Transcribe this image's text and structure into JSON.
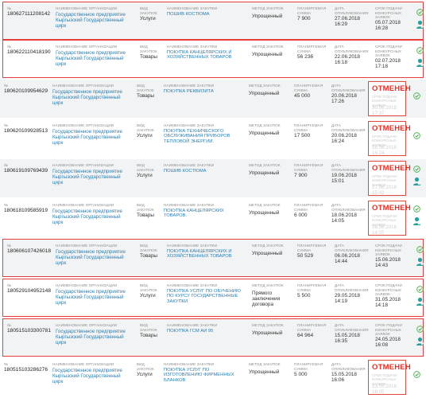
{
  "labels": {
    "number": "№",
    "organization": "НАИМЕНОВАНИЕ ОРГАНИЗАЦИИ",
    "type": "ВИД ЗАКУПОК",
    "purchase_name": "НАИМЕНОВАНИЕ ЗАКУПКИ",
    "method": "МЕТОД ЗАКУПОК",
    "sum": "ПЛАНИРУЕМАЯ СУММА",
    "published": "ДАТА ОПУБЛИКОВАНИЯ",
    "deadline": "СРОК ПОДАЧИ КОНКУРСНЫХ ЗАЯВОК",
    "cancelled": "ОТМЕНЕН"
  },
  "colors": {
    "link": "#2a7fb0",
    "cancel": "#e0322a",
    "highlight_border": "#e53c3c",
    "gray_row": "#f2f3f4",
    "check": "#4caf50",
    "user_icon": "#2a9d9d"
  },
  "rows": [
    {
      "number": "180627111208142",
      "org": "Государственное предприятие Кыргызский Государственный цирк",
      "type": "Услуги",
      "name": "ПОШИВ КОСТЮМА",
      "method": "Упрощенный",
      "sum": "7 900",
      "published": "27.06.2018 16:29",
      "deadline": "05.07.2018 16:28",
      "cancelled": false,
      "gray": true,
      "outlined": true,
      "icons": [
        "check-icon",
        "user-icon"
      ]
    },
    {
      "number": "180622110418190",
      "org": "Государственное предприятие Кыргызский Государственный цирк",
      "type": "Товары",
      "name": "ПОКУПКА КАНЦЕЛЯРСКИХ И ХОЗЯЙСТВЕННЫХ ТОВАРОВ",
      "method": "Упрощенный",
      "sum": "56 236",
      "published": "22.06.2018 16:18",
      "deadline": "02.07.2018 17:18",
      "cancelled": false,
      "gray": false,
      "outlined": true,
      "icons": [
        "check-icon",
        "user-icon"
      ]
    },
    {
      "number": "180620109954629",
      "org": "Государственное предприятие Кыргызский Государственный цирк",
      "type": "Товары",
      "name": "ПОКУПКА РЕКВИЗИТА",
      "method": "Упрощенный",
      "sum": "45 000",
      "published": "20.06.2018 17:26",
      "deadline": "30.06.2018 17:37",
      "cancelled": true,
      "gray": true,
      "outlined": false,
      "icons": [
        "check-icon"
      ]
    },
    {
      "number": "180620109928513",
      "org": "Государственное предприятие Кыргызский Государственный цирк",
      "type": "Услуги",
      "name": "ПОКУПКА ТЕХНИЧЕСКОГО ОБСЛУЖИВАНИЯ ПРИБОРОВ ТЕПЛОВОЙ ЭНЕРГИИ.",
      "method": "Упрощенный",
      "sum": "17 500",
      "published": "20.06.2018 16:24",
      "deadline": "28.06.2018 16:24",
      "cancelled": true,
      "gray": false,
      "outlined": false,
      "icons": [
        "check-icon"
      ]
    },
    {
      "number": "180619109769439",
      "org": "Государственное предприятие Кыргызский Государственный цирк",
      "type": "Услуги",
      "name": "ПОШИВ КОСТЮМА",
      "method": "Упрощенный",
      "sum": "7 900",
      "published": "19.06.2018 15:01",
      "deadline": "27.06.2018 15:42",
      "cancelled": true,
      "gray": true,
      "outlined": false,
      "icons": [
        "check-icon",
        "user-icon"
      ]
    },
    {
      "number": "180618109585919",
      "org": "Государственное предприятие Кыргызский Государственный цирк",
      "type": "Товары",
      "name": "ПОКУПКА КАНЦЕЛЯРСКИХ ТОВАРОВ.",
      "method": "Упрощенный",
      "sum": "6 000",
      "published": "18.06.2018 14:05",
      "deadline": "26.06.2018 14:05",
      "cancelled": true,
      "gray": false,
      "outlined": false,
      "icons": [
        "check-icon",
        "user-icon"
      ]
    },
    {
      "number": "180606107426018",
      "org": "Государственное предприятие Кыргызский Государственный цирк",
      "type": "Товары",
      "name": "ПОКУПКА КАНЦЕЛЯРСКИХ И ХОЗЯЙСТВЕННЫХ ТОВАРОВ",
      "method": "Упрощенный",
      "sum": "50 529",
      "published": "06.06.2018 14:44",
      "deadline": "15.06.2018 14:43",
      "cancelled": false,
      "gray": true,
      "outlined": true,
      "icons": [
        "check-icon",
        "user-icon"
      ]
    },
    {
      "number": "180529104952148",
      "org": "Государственное предприятие Кыргызский Государственный цирк",
      "type": "Услуги",
      "name": "ПОКУПКА УСЛУГ ПО ОБУЧЕНИЮ ПО КУРСУ ГОСУДАРСТВЕННЫЕ ЗАКУПКИ",
      "method": "Прямого заключения договора",
      "sum": "5 500",
      "published": "29.05.2018 14:19",
      "deadline": "31.05.2018 14:18",
      "cancelled": false,
      "gray": false,
      "outlined": true,
      "icons": [
        "check-icon",
        "user-icon"
      ]
    },
    {
      "number": "180515103300781",
      "org": "Государственное предприятие Кыргызский Государственный цирк",
      "type": "Товары",
      "name": "ПОКУПКА ГСМ АИ 95",
      "method": "Упрощенный",
      "sum": "64 964",
      "published": "15.05.2018 16:35",
      "deadline": "24.05.2018 16:08",
      "cancelled": false,
      "gray": true,
      "outlined": true,
      "icons": [
        "check-icon",
        "user-icon"
      ]
    },
    {
      "number": "180515103286276",
      "org": "Государственное предприятие Кыргызский Государственный цирк",
      "type": "Услуги",
      "name": "ПОКУПКА УСЛУГ ПО ИЗГОТОВЛЕНИЮ ФИРМЕННЫХ БЛАНКОВ",
      "method": "Упрощенный",
      "sum": "5 000",
      "published": "15.05.2018 16:06",
      "deadline": "23.05.2018 16:05",
      "cancelled": true,
      "gray": false,
      "outlined": false,
      "icons": [
        "check-icon"
      ]
    }
  ]
}
